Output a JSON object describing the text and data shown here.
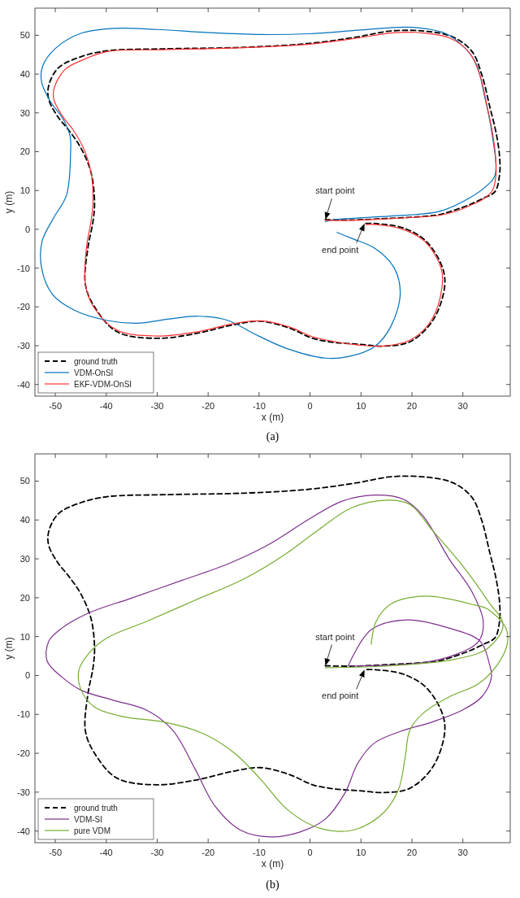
{
  "chart_data": [
    {
      "type": "line",
      "xlabel": "x (m)",
      "ylabel": "y (m)",
      "xlim": [
        -54,
        39.3
      ],
      "ylim": [
        -43,
        57
      ],
      "xticks": [
        -50,
        -40,
        -30,
        -20,
        -10,
        0,
        10,
        20,
        30
      ],
      "yticks": [
        -40,
        -30,
        -20,
        -10,
        0,
        10,
        20,
        30,
        40,
        50
      ],
      "legend": "bottom left",
      "grid": false,
      "annotations": [
        "start point",
        "end point",
        "(a)"
      ],
      "series": [
        {
          "name": "ground truth",
          "color": "#000000",
          "line_style": "dashed",
          "x": [
            3,
            8,
            15,
            22,
            25.4,
            28.5,
            31.2,
            34,
            36.3,
            37.2,
            37.2,
            36.5,
            35.3,
            33.7,
            31.8,
            28,
            22.2,
            15.8,
            9.4,
            -0.2,
            -13,
            -28.9,
            -39.8,
            -44.9,
            -49.4,
            -51.3,
            -51.3,
            -49.5,
            -47.4,
            -45,
            -43,
            -42.3,
            -42.6,
            -43.6,
            -44.1,
            -42.3,
            -37.9,
            -30.2,
            -22.5,
            -15,
            -9.7,
            -4,
            0.5,
            5,
            9.4,
            14.5,
            19.6,
            24.1,
            26.4,
            26,
            22.8,
            18.4,
            12.6,
            10.7
          ],
          "values": [
            2.5,
            2.4,
            2.8,
            3.3,
            3.8,
            5,
            6.3,
            8,
            9.7,
            14,
            18.9,
            25,
            31.5,
            39.9,
            45.8,
            49.6,
            51.1,
            51.1,
            49.6,
            47.9,
            46.9,
            46.5,
            46,
            44.5,
            41.6,
            37,
            33.5,
            29,
            25.6,
            21,
            14.7,
            7.1,
            2,
            -4.8,
            -14.2,
            -20,
            -26.4,
            -28.1,
            -26.9,
            -24.6,
            -23.7,
            -25.5,
            -28.1,
            -29.2,
            -29.6,
            -30.1,
            -29,
            -23.5,
            -15,
            -9.9,
            -3.1,
            0.3,
            1.5,
            1.5
          ]
        },
        {
          "name": "VDM-OnSI",
          "color": "#0072bd",
          "line_style": "solid",
          "x": [
            3,
            5,
            15.8,
            25.4,
            31.2,
            34.5,
            36.3,
            35.6,
            34.3,
            32.7,
            30.5,
            26.7,
            22.2,
            18.4,
            9.4,
            -0.2,
            -9.7,
            -20,
            -30,
            -38.5,
            -45,
            -50,
            -52.5,
            -52.7,
            -51,
            -48.5,
            -47.1,
            -47,
            -47.8,
            -50.3,
            -52.6,
            -52.7,
            -50.6,
            -46.2,
            -39.8,
            -34,
            -27.6,
            -21.9,
            -16.1,
            -11,
            -4.6,
            3,
            7.5,
            12.6,
            15.8,
            17.7,
            16.5,
            12.6,
            8.1,
            5.3
          ],
          "values": [
            2,
            2.5,
            3.4,
            4.6,
            8,
            11,
            13.9,
            25.6,
            34,
            42.4,
            46.6,
            50.4,
            51.8,
            52.1,
            51.3,
            50.4,
            50.2,
            50.7,
            51.5,
            51.8,
            50.5,
            46.6,
            42,
            38,
            33,
            28.5,
            24,
            19.8,
            8.8,
            3,
            -3.1,
            -9.9,
            -16.7,
            -20.9,
            -23.5,
            -24.2,
            -23.1,
            -22.4,
            -23.5,
            -26.9,
            -30.7,
            -33.2,
            -32.8,
            -30.3,
            -25.2,
            -16.7,
            -9.9,
            -4.8,
            -2.3,
            -0.8
          ]
        },
        {
          "name": "EKF-VDM-OnSI",
          "color": "#ff3333",
          "line_style": "solid",
          "x": [
            3,
            8,
            15,
            22,
            25.4,
            28.5,
            31.2,
            34,
            35.8,
            36.5,
            36.4,
            35.8,
            34.8,
            33.3,
            31.3,
            27.6,
            22.2,
            15.8,
            9.4,
            -0.2,
            -13,
            -28.9,
            -39.8,
            -44.9,
            -48.1,
            -50.2,
            -50.3,
            -48.5,
            -46.5,
            -44.5,
            -43,
            -42.6,
            -43,
            -43.9,
            -44.1,
            -42.5,
            -37.9,
            -30.2,
            -22.5,
            -15,
            -9.7,
            -4,
            0.5,
            5,
            9.4,
            14.5,
            19.6,
            23.8,
            25.9,
            25.7,
            22.5,
            18.2,
            13,
            11
          ],
          "values": [
            2.3,
            2.3,
            2.7,
            3.2,
            3.6,
            4.6,
            6,
            7.8,
            10,
            14,
            19,
            25,
            31.5,
            39.9,
            45.5,
            49.2,
            50.6,
            50.6,
            49.3,
            47.7,
            46.8,
            46.3,
            45.8,
            43.5,
            41.2,
            36.5,
            33.5,
            29,
            25.6,
            21,
            14.7,
            7.1,
            2,
            -4.8,
            -14.2,
            -20,
            -26,
            -27.5,
            -26.5,
            -24.3,
            -23.6,
            -25.2,
            -27.7,
            -29,
            -29.8,
            -30.1,
            -28.6,
            -23.5,
            -15,
            -9.9,
            -3.1,
            0,
            1.2,
            1.2
          ]
        }
      ]
    },
    {
      "type": "line",
      "xlabel": "x (m)",
      "ylabel": "y (m)",
      "xlim": [
        -54,
        39.3
      ],
      "ylim": [
        -43,
        57
      ],
      "xticks": [
        -50,
        -40,
        -30,
        -20,
        -10,
        0,
        10,
        20,
        30
      ],
      "yticks": [
        -40,
        -30,
        -20,
        -10,
        0,
        10,
        20,
        30,
        40,
        50
      ],
      "legend": "bottom left",
      "grid": false,
      "annotations": [
        "start point",
        "end point",
        "(b)"
      ],
      "series": [
        {
          "name": "ground truth",
          "color": "#000000",
          "line_style": "dashed",
          "x": [
            3,
            8,
            15,
            22,
            25.4,
            28.5,
            31.2,
            34,
            36.3,
            37.2,
            37.2,
            36.5,
            35.3,
            33.7,
            31.8,
            28,
            22.2,
            15.8,
            9.4,
            -0.2,
            -13,
            -28.9,
            -39.8,
            -44.9,
            -49.4,
            -51.3,
            -51.3,
            -49.5,
            -47.4,
            -45,
            -43,
            -42.3,
            -42.6,
            -43.6,
            -44.1,
            -42.3,
            -37.9,
            -30.2,
            -22.5,
            -15,
            -9.7,
            -4,
            0.5,
            5,
            9.4,
            14.5,
            19.6,
            24.1,
            26.4,
            26,
            22.8,
            18.4,
            12.6,
            10.7
          ],
          "values": [
            2.5,
            2.4,
            2.8,
            3.3,
            3.8,
            5,
            6.3,
            8,
            9.7,
            14,
            18.9,
            25,
            31.5,
            39.9,
            45.8,
            49.6,
            51.1,
            51.1,
            49.6,
            47.9,
            46.9,
            46.5,
            46,
            44.5,
            41.6,
            37,
            33.5,
            29,
            25.6,
            21,
            14.7,
            7.1,
            2,
            -4.8,
            -14.2,
            -20,
            -26.4,
            -28.1,
            -26.9,
            -24.6,
            -23.7,
            -25.5,
            -28.1,
            -29.2,
            -29.6,
            -30.1,
            -29,
            -23.5,
            -15,
            -9.9,
            -3.1,
            0.3,
            1.5,
            1.5
          ]
        },
        {
          "name": "VDM-SI",
          "color": "#7e2f8e",
          "line_style": "solid",
          "x": [
            8,
            22.2,
            28.6,
            33.1,
            34,
            31.8,
            27.3,
            22.2,
            18.4,
            12.6,
            6.2,
            -0.2,
            -8.5,
            -16.1,
            -25.1,
            -35.3,
            -43.6,
            -48.7,
            -51.3,
            -51.6,
            -48.7,
            -44.9,
            -38.5,
            -32.1,
            -27,
            -22.5,
            -18.7,
            -13.6,
            -7.8,
            -2.1,
            3,
            6.9,
            9.4,
            12.6,
            17.7,
            24.1,
            29.9,
            33.7,
            35.6,
            35.2,
            33.4,
            27.3,
            19,
            12,
            7.5
          ],
          "values": [
            2.4,
            3.3,
            5.4,
            8.8,
            13.9,
            21.5,
            30,
            41,
            45.3,
            46.4,
            44.8,
            40.2,
            33.4,
            28.7,
            24.5,
            19.8,
            16,
            12.2,
            8.8,
            3.7,
            -0.4,
            -3.8,
            -6.4,
            -8.9,
            -14,
            -24.2,
            -33.5,
            -39.8,
            -41.5,
            -40.3,
            -36.9,
            -30.1,
            -22.5,
            -17.4,
            -14.4,
            -11.9,
            -8.9,
            -5.5,
            -0.4,
            3,
            8.8,
            12.2,
            14.3,
            11.8,
            2.5
          ]
        },
        {
          "name": "pure VDM",
          "color": "#77ac30",
          "line_style": "solid",
          "x": [
            3,
            15.8,
            28.6,
            35,
            37.9,
            35,
            29.9,
            24.1,
            19.6,
            15.2,
            8.1,
            1.8,
            -5.3,
            -12.9,
            -22.5,
            -32.1,
            -39.8,
            -43.6,
            -45.4,
            -44.9,
            -42.3,
            -36.6,
            -28.9,
            -21.2,
            -14.9,
            -9.7,
            -4.6,
            0.5,
            5.6,
            9.4,
            14.5,
            17.4,
            18.7,
            19.6,
            22.2,
            27.3,
            33.1,
            36.9,
            38.7,
            38.5,
            35,
            32.4,
            22.8,
            16,
            13,
            12
          ],
          "values": [
            2,
            2.5,
            4.2,
            7.1,
            13,
            19,
            28.3,
            37.2,
            44,
            45.1,
            43.1,
            37.6,
            30.8,
            24.9,
            19.4,
            13.9,
            9.7,
            5.4,
            1.2,
            -3.8,
            -8.1,
            -10.6,
            -11.9,
            -14.8,
            -19.9,
            -26.7,
            -34.3,
            -38.6,
            -40.1,
            -39.4,
            -35.2,
            -29.2,
            -20.8,
            -14,
            -9.7,
            -5.5,
            -2.1,
            3,
            8,
            12,
            17,
            18.1,
            20.4,
            18.5,
            14,
            8
          ]
        }
      ]
    }
  ]
}
